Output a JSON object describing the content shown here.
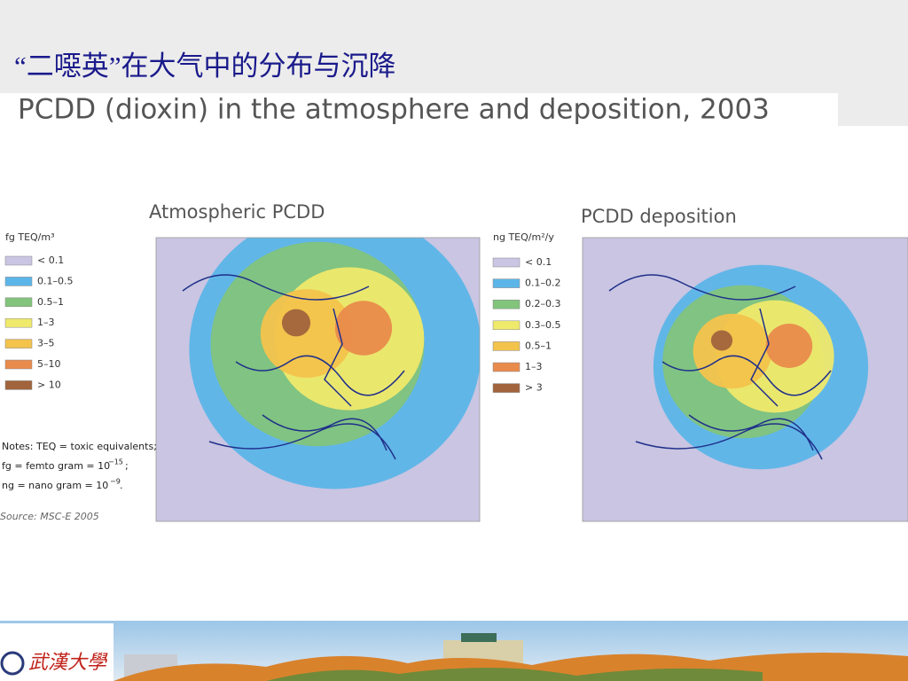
{
  "header": {
    "title": "“二噁英”在大气中的分布与沉降",
    "subtitle": "PCDD (dioxin) in the atmosphere and deposition, 2003"
  },
  "maps": [
    {
      "title": "Atmospheric PCDD",
      "legend_unit": "fg TEQ/m³",
      "legend": [
        {
          "label": "< 0.1",
          "color": "#c9c5e2"
        },
        {
          "label": "0.1–0.5",
          "color": "#5cb5e8"
        },
        {
          "label": "0.5–1",
          "color": "#82c47c"
        },
        {
          "label": "1–3",
          "color": "#efe96c"
        },
        {
          "label": "3–5",
          "color": "#f3c34c"
        },
        {
          "label": "5–10",
          "color": "#e98b4c"
        },
        {
          "label": "> 10",
          "color": "#a1643c"
        }
      ]
    },
    {
      "title": "PCDD deposition",
      "legend_unit": "ng TEQ/m²/y",
      "legend": [
        {
          "label": "< 0.1",
          "color": "#c9c5e2"
        },
        {
          "label": "0.1–0.2",
          "color": "#5cb5e8"
        },
        {
          "label": "0.2–0.3",
          "color": "#82c47c"
        },
        {
          "label": "0.3–0.5",
          "color": "#efe96c"
        },
        {
          "label": "0.5–1",
          "color": "#f3c34c"
        },
        {
          "label": "1–3",
          "color": "#e98b4c"
        },
        {
          "label": "> 3",
          "color": "#a1643c"
        }
      ]
    }
  ],
  "notes": {
    "line1": "Notes: TEQ = toxic equivalents;",
    "line2": "fg = femto gram = 10",
    "line2_exp": "−15",
    "line2_end": ";",
    "line3": "ng = nano gram = 10",
    "line3_exp": "−9",
    "line3_end": ".",
    "source": "Source: MSC-E 2005"
  },
  "footer": {
    "logo": "武漢大學"
  }
}
